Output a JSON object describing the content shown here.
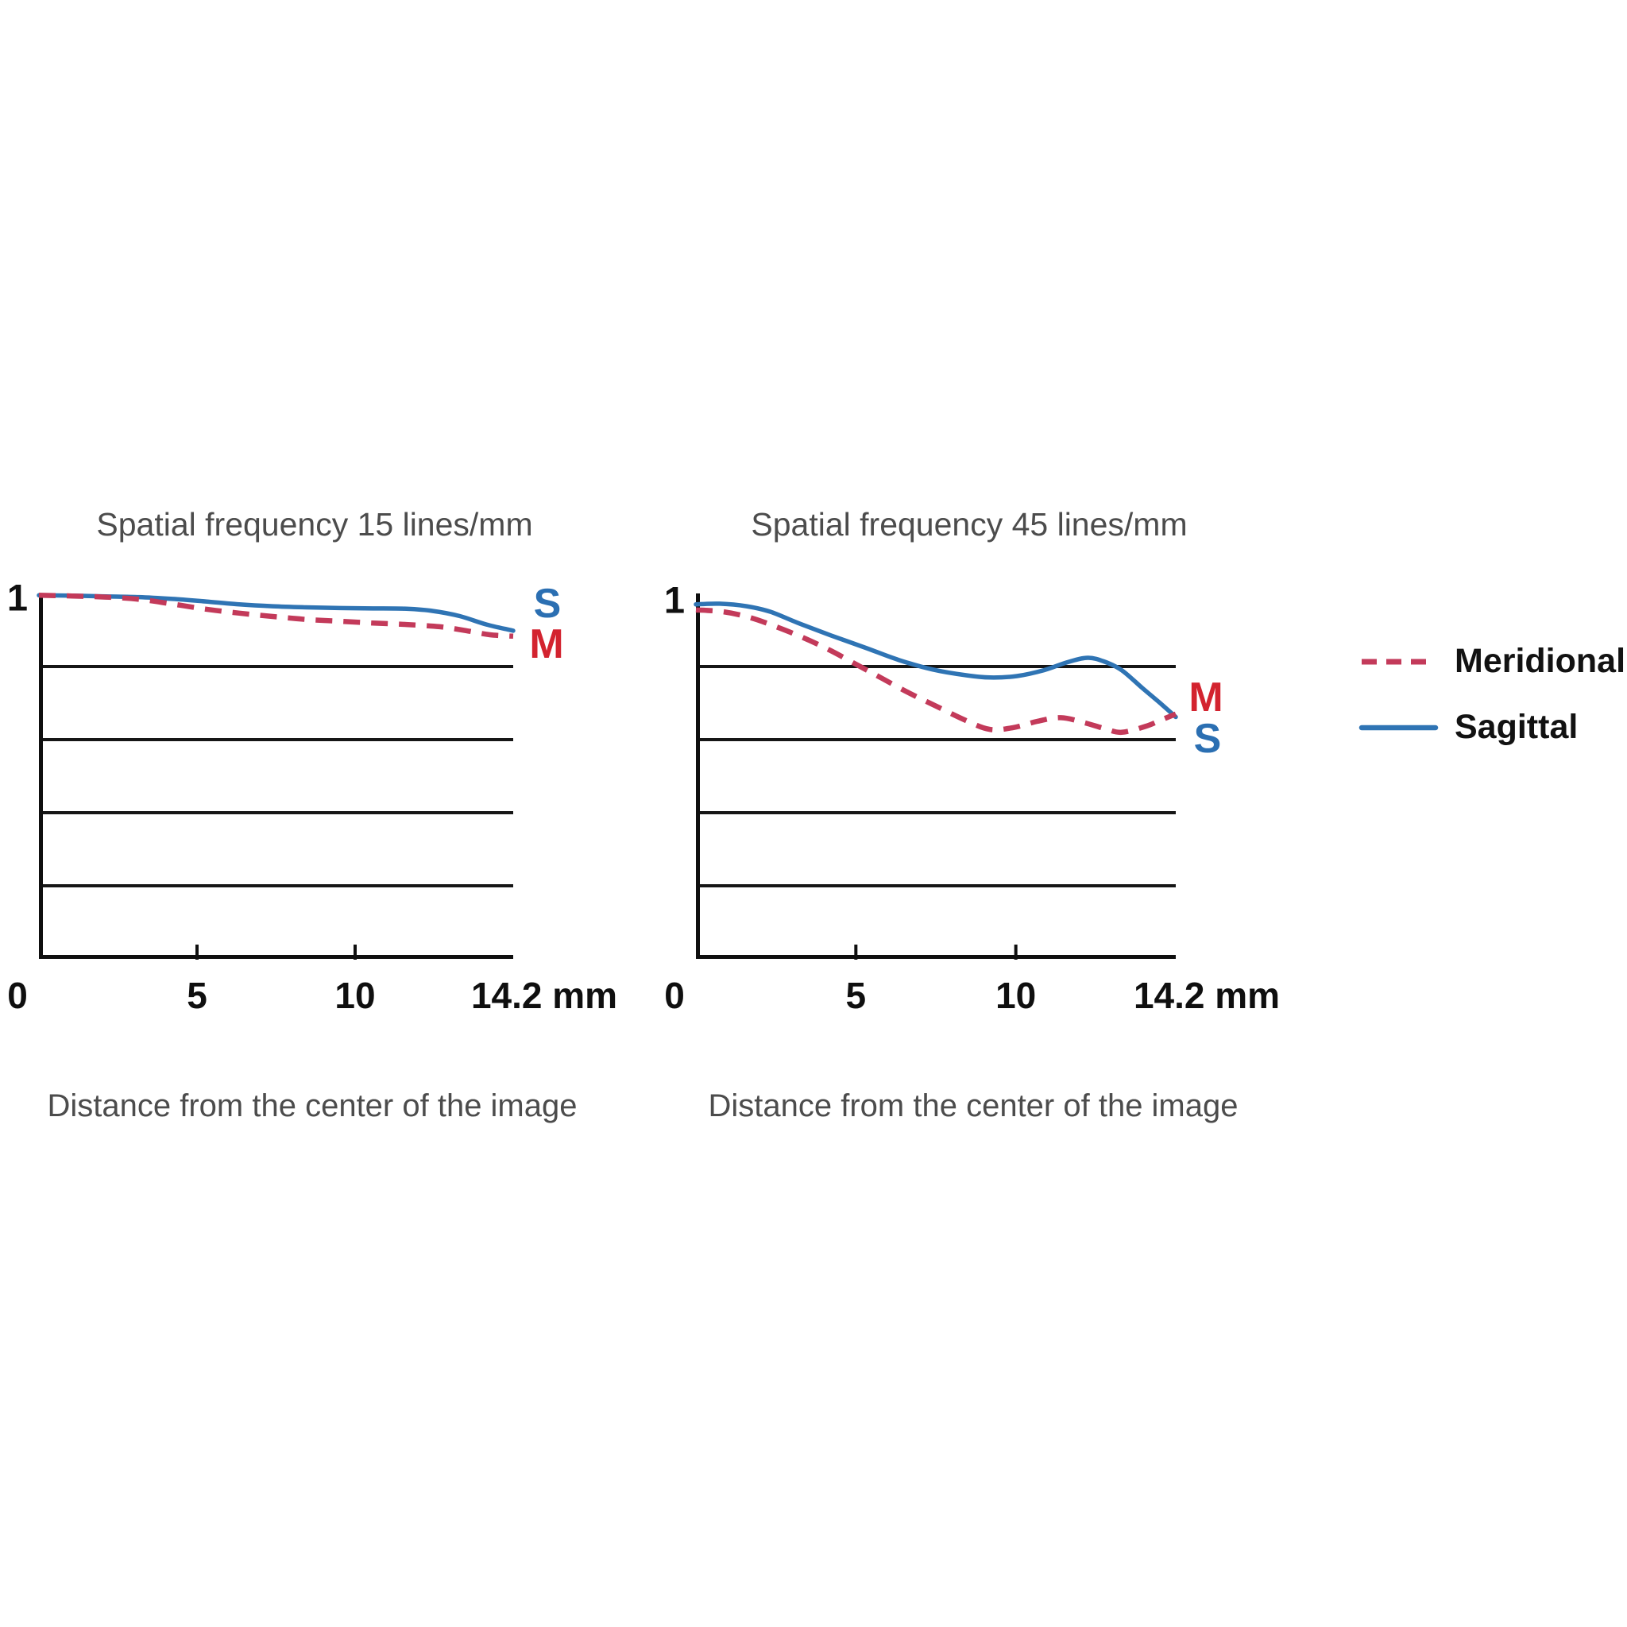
{
  "chart_data": {
    "type": "line",
    "figure": "MTF lens chart",
    "charts": [
      {
        "title": "Spatial frequency 15 lines/mm",
        "x_axis_title": "Distance from the center of the image",
        "y_axis_top_label": "1",
        "xlim": [
          0,
          15
        ],
        "curve_xmax": 14.2,
        "ylim": [
          0,
          1
        ],
        "grid": true,
        "gridlines_y": [
          0.2,
          0.4,
          0.6,
          0.8
        ],
        "x_ticks": [
          {
            "value": 0,
            "label": "0",
            "tick": false
          },
          {
            "value": 5,
            "label": "5",
            "tick": true
          },
          {
            "value": 10,
            "label": "10",
            "tick": true
          },
          {
            "value": 14.2,
            "label": "14.2 mm",
            "tick": false,
            "at_axis_end": true
          }
        ],
        "series": [
          {
            "name": "Sagittal",
            "letter": "S",
            "line_style": "solid",
            "color": "#2f74b4",
            "label_color": "#2b6fb2",
            "points": [
              [
                0,
                0.995
              ],
              [
                1,
                0.994
              ],
              [
                2,
                0.992
              ],
              [
                3,
                0.99
              ],
              [
                4,
                0.985
              ],
              [
                5,
                0.978
              ],
              [
                6,
                0.97
              ],
              [
                7,
                0.965
              ],
              [
                8,
                0.962
              ],
              [
                9,
                0.96
              ],
              [
                10,
                0.959
              ],
              [
                11,
                0.958
              ],
              [
                11.8,
                0.952
              ],
              [
                12.6,
                0.938
              ],
              [
                13.4,
                0.915
              ],
              [
                14.2,
                0.898
              ]
            ]
          },
          {
            "name": "Meridional",
            "letter": "M",
            "line_style": "dashed",
            "color": "#c33a5a",
            "label_color": "#d3232f",
            "points": [
              [
                0,
                0.995
              ],
              [
                1,
                0.993
              ],
              [
                2,
                0.99
              ],
              [
                3,
                0.984
              ],
              [
                4,
                0.971
              ],
              [
                5,
                0.957
              ],
              [
                6,
                0.946
              ],
              [
                7,
                0.937
              ],
              [
                8,
                0.929
              ],
              [
                9,
                0.924
              ],
              [
                10,
                0.919
              ],
              [
                11,
                0.915
              ],
              [
                12,
                0.909
              ],
              [
                12.8,
                0.898
              ],
              [
                13.5,
                0.887
              ],
              [
                14.2,
                0.883
              ]
            ]
          }
        ],
        "end_labels": [
          {
            "text": "S",
            "color": "#2b6fb2"
          },
          {
            "text": "M",
            "color": "#d3232f"
          }
        ]
      },
      {
        "title": "Spatial frequency 45 lines/mm",
        "x_axis_title": "Distance from the center of the image",
        "y_axis_top_label": "1",
        "xlim": [
          0,
          15
        ],
        "curve_xmax": 14.2,
        "ylim": [
          0,
          1
        ],
        "grid": true,
        "gridlines_y": [
          0.2,
          0.4,
          0.6,
          0.8
        ],
        "x_ticks": [
          {
            "value": 0,
            "label": "0",
            "tick": false
          },
          {
            "value": 5,
            "label": "5",
            "tick": true
          },
          {
            "value": 10,
            "label": "10",
            "tick": true
          },
          {
            "value": 14.2,
            "label": "14.2 mm",
            "tick": false,
            "at_axis_end": true
          }
        ],
        "series": [
          {
            "name": "Sagittal",
            "letter": "S",
            "line_style": "solid",
            "color": "#2f74b4",
            "label_color": "#2b6fb2",
            "points": [
              [
                0,
                0.97
              ],
              [
                0.7,
                0.972
              ],
              [
                1.5,
                0.965
              ],
              [
                2.2,
                0.95
              ],
              [
                3,
                0.92
              ],
              [
                4,
                0.885
              ],
              [
                5,
                0.852
              ],
              [
                6,
                0.818
              ],
              [
                7,
                0.792
              ],
              [
                8,
                0.776
              ],
              [
                8.7,
                0.77
              ],
              [
                9.5,
                0.774
              ],
              [
                10.3,
                0.79
              ],
              [
                11,
                0.812
              ],
              [
                11.6,
                0.824
              ],
              [
                12.1,
                0.813
              ],
              [
                12.6,
                0.79
              ],
              [
                13.2,
                0.742
              ],
              [
                13.7,
                0.703
              ],
              [
                14.2,
                0.662
              ]
            ]
          },
          {
            "name": "Meridional",
            "letter": "M",
            "line_style": "dashed",
            "color": "#c33a5a",
            "label_color": "#d3232f",
            "points": [
              [
                0,
                0.955
              ],
              [
                0.8,
                0.95
              ],
              [
                1.6,
                0.934
              ],
              [
                2.4,
                0.908
              ],
              [
                3.2,
                0.878
              ],
              [
                4,
                0.843
              ],
              [
                4.8,
                0.803
              ],
              [
                5.5,
                0.768
              ],
              [
                6.3,
                0.728
              ],
              [
                7.1,
                0.692
              ],
              [
                8,
                0.652
              ],
              [
                8.7,
                0.628
              ],
              [
                9.4,
                0.633
              ],
              [
                10.1,
                0.65
              ],
              [
                10.8,
                0.66
              ],
              [
                11.5,
                0.646
              ],
              [
                12.1,
                0.63
              ],
              [
                12.6,
                0.62
              ],
              [
                13.3,
                0.636
              ],
              [
                13.8,
                0.655
              ],
              [
                14.2,
                0.67
              ]
            ]
          }
        ],
        "end_labels": [
          {
            "text": "M",
            "color": "#d3232f"
          },
          {
            "text": "S",
            "color": "#2b6fb2"
          }
        ]
      }
    ],
    "legend": {
      "position": "right",
      "items": [
        {
          "label": "Meridional",
          "line_style": "dashed",
          "color": "#c33a5a"
        },
        {
          "label": "Sagittal",
          "line_style": "solid",
          "color": "#2f74b4"
        }
      ]
    }
  }
}
